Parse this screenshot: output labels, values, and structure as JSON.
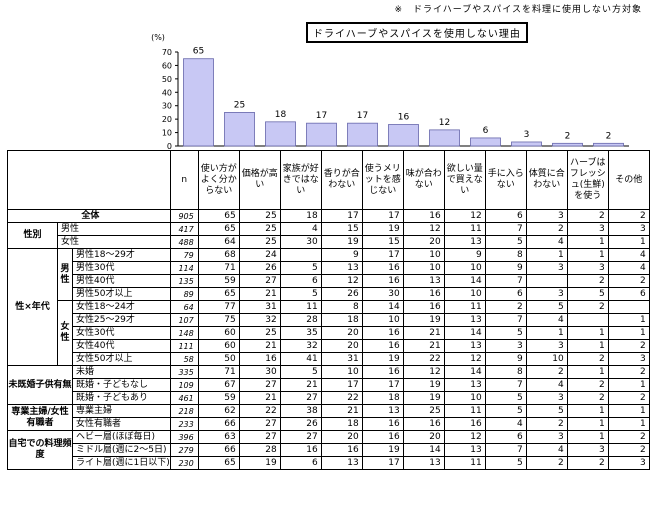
{
  "note": "※　ドライハーブやスパイスを料理に使用しない方対象",
  "chart_title": "ドライハーブやスパイスを使用しない理由",
  "chart_data": {
    "type": "bar",
    "title": "ドライハーブやスパイスを使用しない理由",
    "ylabel": "(%)",
    "ylim": [
      0,
      70
    ],
    "yticks": [
      0,
      10,
      20,
      30,
      40,
      50,
      60,
      70
    ],
    "categories": [
      "使い方がよく分からない",
      "価格が高い",
      "家族が好きではない",
      "香りが合わない",
      "使うメリットを感じない",
      "味が合わない",
      "欲しい量で買えない",
      "手に入らない",
      "体質に合わない",
      "ハーブはフレッシュ(生鮮)を使う",
      "その他"
    ],
    "values": [
      65,
      25,
      18,
      17,
      17,
      16,
      12,
      6,
      3,
      2,
      2
    ],
    "bar_color": "#c8c8f4"
  },
  "table": {
    "n_header": "n",
    "headers": [
      "使い方がよく分からない",
      "価格が高い",
      "家族が好きではない",
      "香りが合わない",
      "使うメリットを感じない",
      "味が合わない",
      "欲しい量で買えない",
      "手に入らない",
      "体質に合わない",
      "ハーブはフレッシュ(生鮮)を使う",
      "その他"
    ],
    "groups": {
      "sex": "性別",
      "sexage": "性×年代",
      "male": "男性",
      "female": "女性",
      "marital": "未既婚子供有無",
      "homemaker": "専業主婦/女性有職者",
      "cooking": "自宅での料理頻度"
    },
    "rows": [
      {
        "label": "全体",
        "n": "905",
        "v": [
          "65",
          "25",
          "18",
          "17",
          "17",
          "16",
          "12",
          "6",
          "3",
          "2",
          "2"
        ]
      },
      {
        "label": "男性",
        "n": "417",
        "v": [
          "65",
          "25",
          "4",
          "15",
          "19",
          "12",
          "11",
          "7",
          "2",
          "3",
          "3"
        ]
      },
      {
        "label": "女性",
        "n": "488",
        "v": [
          "64",
          "25",
          "30",
          "19",
          "15",
          "20",
          "13",
          "5",
          "4",
          "1",
          "1"
        ]
      },
      {
        "label": "男性18～29才",
        "n": "79",
        "v": [
          "68",
          "24",
          "",
          "9",
          "17",
          "10",
          "9",
          "8",
          "1",
          "1",
          "4"
        ]
      },
      {
        "label": "男性30代",
        "n": "114",
        "v": [
          "71",
          "26",
          "5",
          "13",
          "16",
          "10",
          "10",
          "9",
          "3",
          "3",
          "4"
        ]
      },
      {
        "label": "男性40代",
        "n": "135",
        "v": [
          "59",
          "27",
          "6",
          "12",
          "16",
          "13",
          "14",
          "7",
          "",
          "2",
          "2"
        ]
      },
      {
        "label": "男性50才以上",
        "n": "89",
        "v": [
          "65",
          "21",
          "5",
          "26",
          "30",
          "16",
          "10",
          "6",
          "3",
          "5",
          "6"
        ]
      },
      {
        "label": "女性18～24才",
        "n": "64",
        "v": [
          "77",
          "31",
          "11",
          "8",
          "14",
          "16",
          "11",
          "2",
          "5",
          "2",
          ""
        ]
      },
      {
        "label": "女性25～29才",
        "n": "107",
        "v": [
          "75",
          "32",
          "28",
          "18",
          "10",
          "19",
          "13",
          "7",
          "4",
          "",
          "1"
        ]
      },
      {
        "label": "女性30代",
        "n": "148",
        "v": [
          "60",
          "25",
          "35",
          "20",
          "16",
          "21",
          "14",
          "5",
          "1",
          "1",
          "1"
        ]
      },
      {
        "label": "女性40代",
        "n": "111",
        "v": [
          "60",
          "21",
          "32",
          "20",
          "16",
          "21",
          "13",
          "3",
          "3",
          "1",
          "2"
        ]
      },
      {
        "label": "女性50才以上",
        "n": "58",
        "v": [
          "50",
          "16",
          "41",
          "31",
          "19",
          "22",
          "12",
          "9",
          "10",
          "2",
          "3"
        ]
      },
      {
        "label": "未婚",
        "n": "335",
        "v": [
          "71",
          "30",
          "5",
          "10",
          "16",
          "12",
          "14",
          "8",
          "2",
          "1",
          "2"
        ]
      },
      {
        "label": "既婚・子どもなし",
        "n": "109",
        "v": [
          "67",
          "27",
          "21",
          "17",
          "17",
          "19",
          "13",
          "7",
          "4",
          "2",
          "1"
        ]
      },
      {
        "label": "既婚・子どもあり",
        "n": "461",
        "v": [
          "59",
          "21",
          "27",
          "22",
          "18",
          "19",
          "10",
          "5",
          "3",
          "2",
          "2"
        ]
      },
      {
        "label": "専業主婦",
        "n": "218",
        "v": [
          "62",
          "22",
          "38",
          "21",
          "13",
          "25",
          "11",
          "5",
          "5",
          "1",
          "1"
        ]
      },
      {
        "label": "女性有職者",
        "n": "233",
        "v": [
          "66",
          "27",
          "26",
          "18",
          "16",
          "16",
          "16",
          "4",
          "2",
          "1",
          "1"
        ]
      },
      {
        "label": "ヘビー層(ほぼ毎日)",
        "n": "396",
        "v": [
          "63",
          "27",
          "27",
          "20",
          "16",
          "20",
          "12",
          "6",
          "3",
          "1",
          "2"
        ]
      },
      {
        "label": "ミドル層(週に2～5日)",
        "n": "279",
        "v": [
          "66",
          "28",
          "16",
          "16",
          "19",
          "14",
          "13",
          "7",
          "4",
          "3",
          "2"
        ]
      },
      {
        "label": "ライト層(週に1日以下)",
        "n": "230",
        "v": [
          "65",
          "19",
          "6",
          "13",
          "17",
          "13",
          "11",
          "5",
          "2",
          "2",
          "3"
        ]
      }
    ]
  }
}
